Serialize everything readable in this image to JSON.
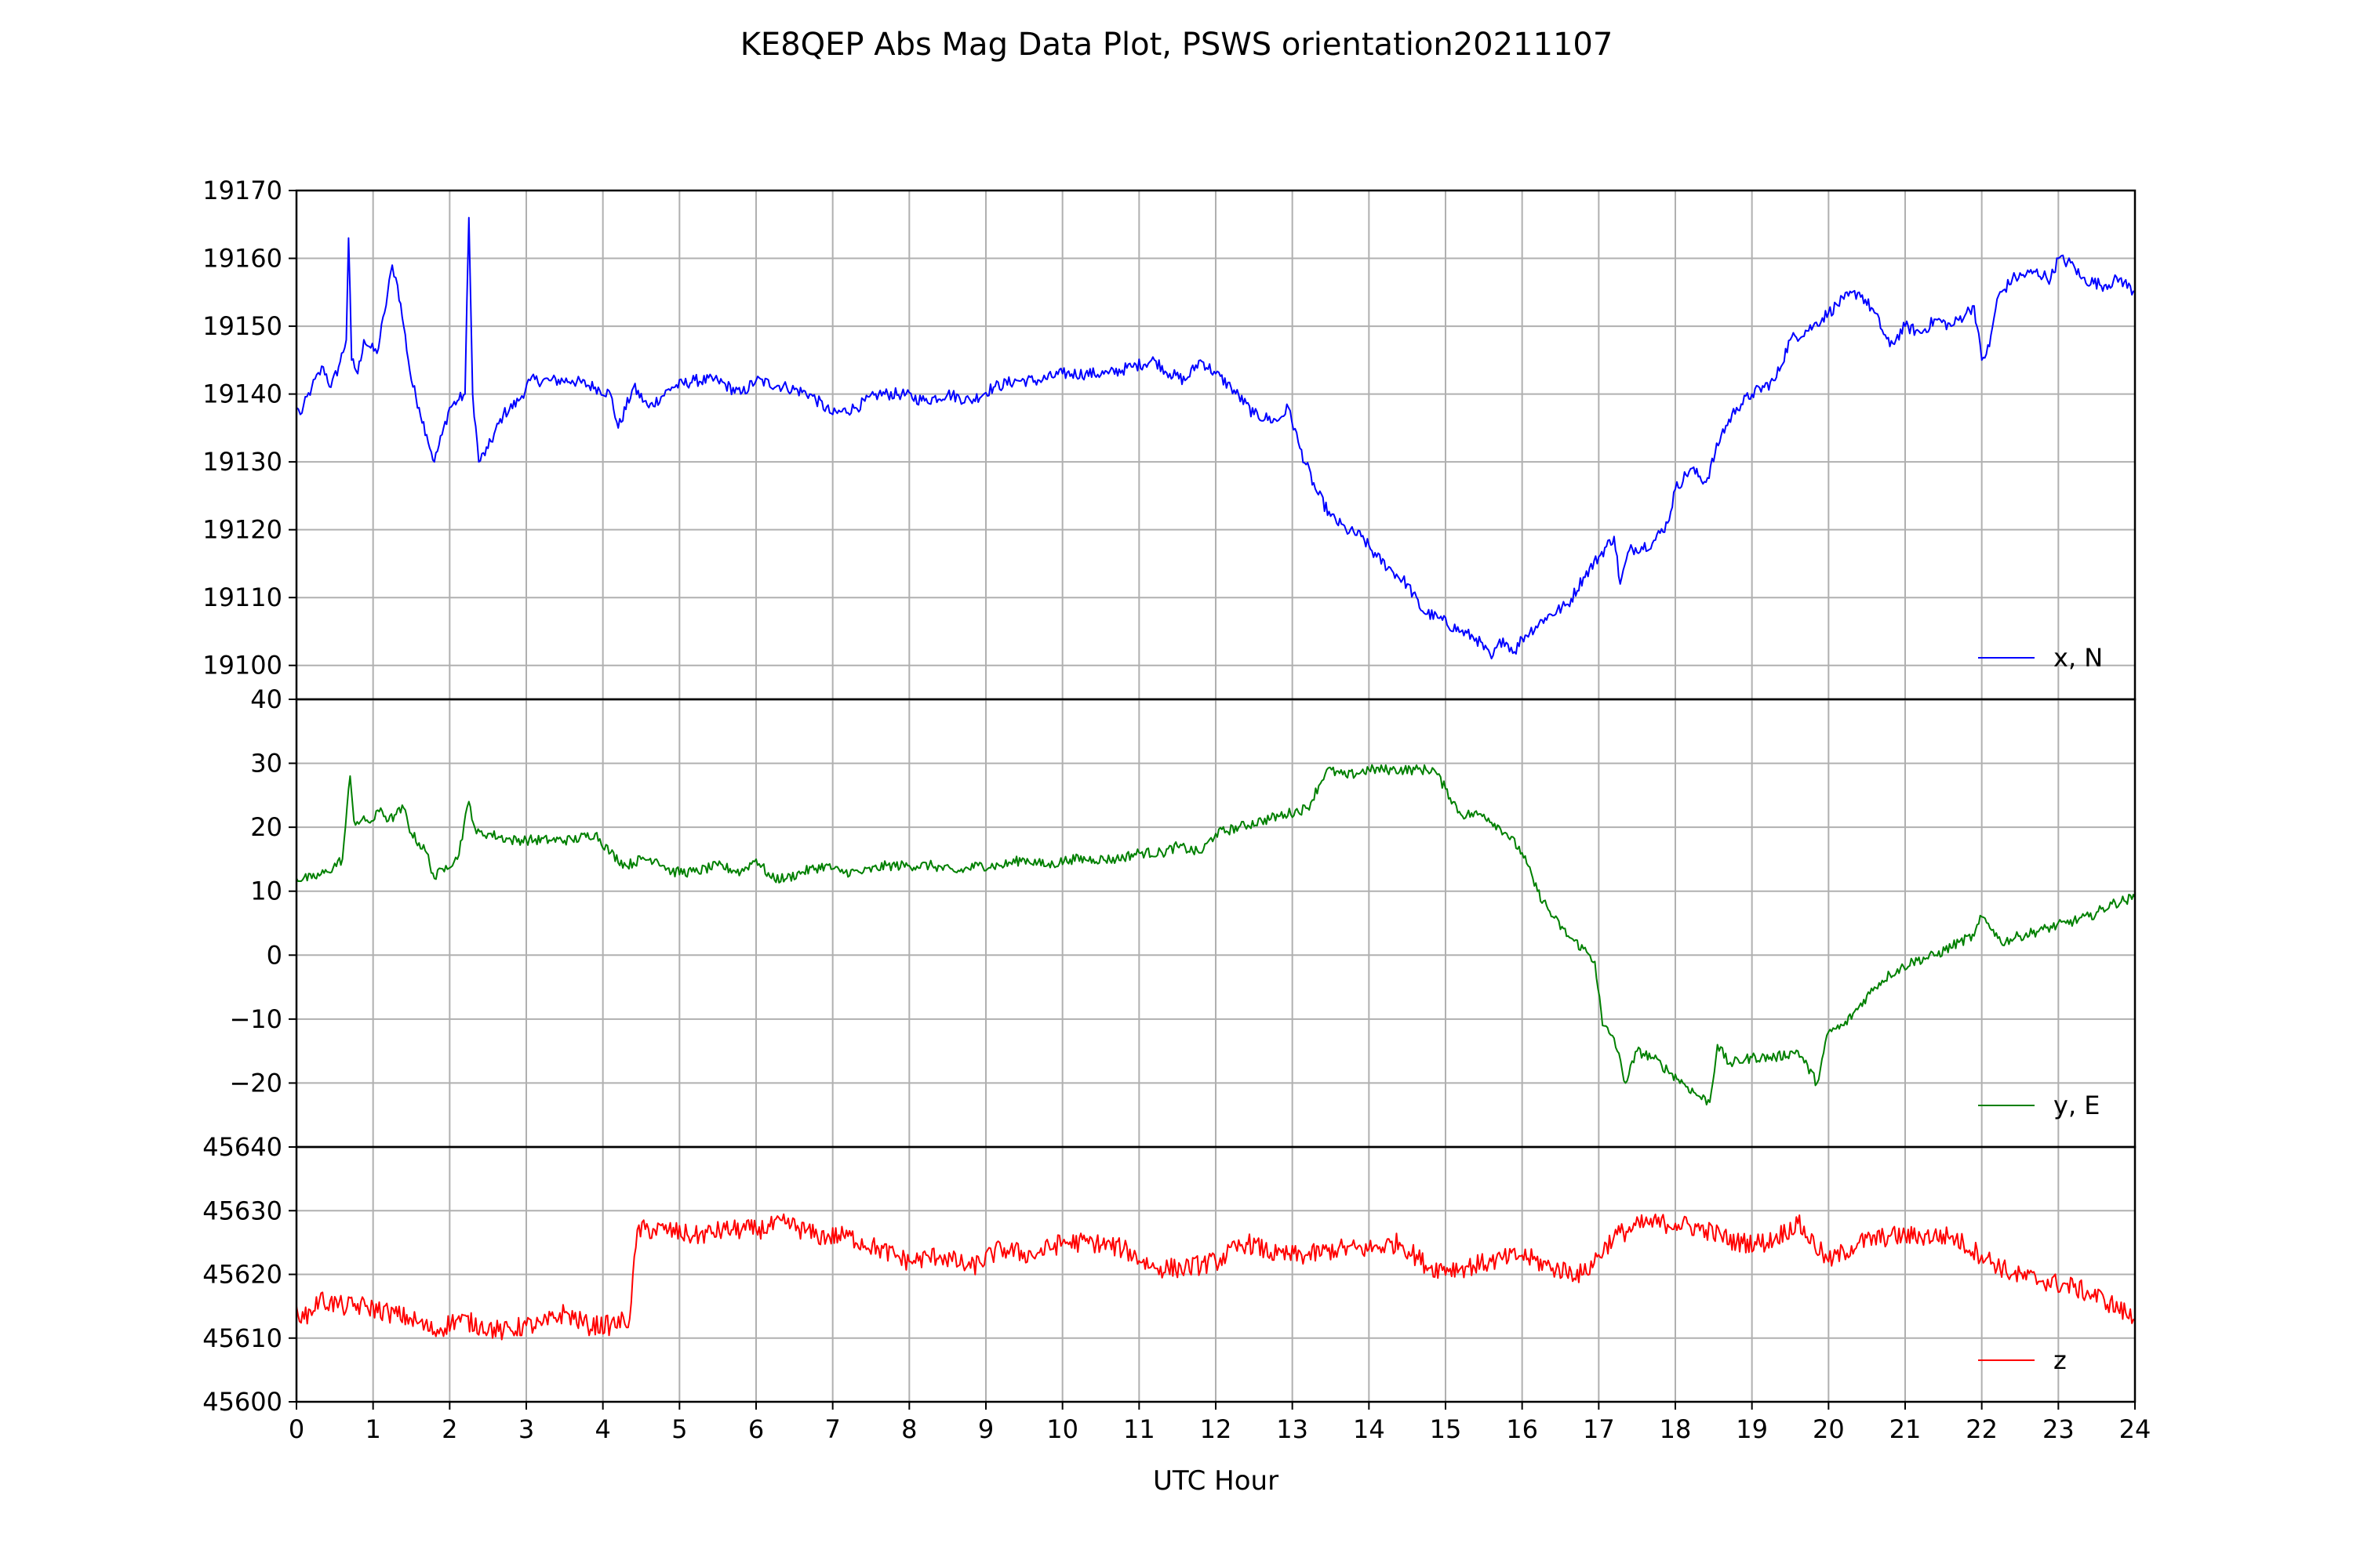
{
  "chart_data": {
    "type": "line",
    "title": "KE8QEP Abs Mag Data Plot, PSWS orientation20211107",
    "xlabel": "UTC Hour",
    "xlim": [
      0,
      24
    ],
    "x_ticks": [
      "0",
      "1",
      "2",
      "3",
      "4",
      "5",
      "6",
      "7",
      "8",
      "9",
      "10",
      "11",
      "12",
      "13",
      "14",
      "15",
      "16",
      "17",
      "18",
      "19",
      "20",
      "21",
      "22",
      "23",
      "24"
    ],
    "grid": true,
    "legend_placement": "lower-right",
    "panels": [
      {
        "series_name": "x, N",
        "color": "#0000ff",
        "ylim": [
          19095,
          19170
        ],
        "y_ticks": [
          "19170",
          "19160",
          "19150",
          "19140",
          "19130",
          "19120",
          "19110",
          "19100"
        ],
        "noise": 0.9,
        "points": [
          [
            0,
            19138
          ],
          [
            0.05,
            19137
          ],
          [
            0.2,
            19141
          ],
          [
            0.35,
            19144
          ],
          [
            0.45,
            19141
          ],
          [
            0.55,
            19144
          ],
          [
            0.65,
            19148
          ],
          [
            0.68,
            19163
          ],
          [
            0.72,
            19145
          ],
          [
            0.8,
            19143
          ],
          [
            0.88,
            19148
          ],
          [
            0.95,
            19147
          ],
          [
            1.05,
            19146
          ],
          [
            1.15,
            19152
          ],
          [
            1.25,
            19159
          ],
          [
            1.32,
            19156
          ],
          [
            1.4,
            19150
          ],
          [
            1.5,
            19142
          ],
          [
            1.6,
            19138
          ],
          [
            1.7,
            19134
          ],
          [
            1.8,
            19130
          ],
          [
            1.9,
            19134
          ],
          [
            2.0,
            19138
          ],
          [
            2.1,
            19139
          ],
          [
            2.2,
            19140
          ],
          [
            2.25,
            19166
          ],
          [
            2.3,
            19140
          ],
          [
            2.38,
            19130
          ],
          [
            2.5,
            19132
          ],
          [
            2.7,
            19137
          ],
          [
            2.9,
            19139
          ],
          [
            3.05,
            19142
          ],
          [
            3.3,
            19142
          ],
          [
            3.6,
            19142
          ],
          [
            3.9,
            19141
          ],
          [
            4.1,
            19140
          ],
          [
            4.2,
            19135
          ],
          [
            4.4,
            19141
          ],
          [
            4.6,
            19138
          ],
          [
            4.9,
            19141
          ],
          [
            5.2,
            19142
          ],
          [
            5.5,
            19142
          ],
          [
            5.8,
            19140
          ],
          [
            6.0,
            19142
          ],
          [
            6.4,
            19141
          ],
          [
            6.7,
            19140
          ],
          [
            7.0,
            19137
          ],
          [
            7.3,
            19138
          ],
          [
            7.6,
            19140
          ],
          [
            7.9,
            19140
          ],
          [
            8.2,
            19139
          ],
          [
            8.5,
            19140
          ],
          [
            8.8,
            19139
          ],
          [
            9.1,
            19141
          ],
          [
            9.4,
            19142
          ],
          [
            9.7,
            19142
          ],
          [
            10.0,
            19143
          ],
          [
            10.3,
            19143
          ],
          [
            10.6,
            19143
          ],
          [
            10.9,
            19144
          ],
          [
            11.2,
            19145
          ],
          [
            11.4,
            19143
          ],
          [
            11.6,
            19142
          ],
          [
            11.8,
            19145
          ],
          [
            12.0,
            19143
          ],
          [
            12.2,
            19141
          ],
          [
            12.5,
            19137
          ],
          [
            12.8,
            19136
          ],
          [
            12.95,
            19138
          ],
          [
            13.1,
            19132
          ],
          [
            13.3,
            19126
          ],
          [
            13.5,
            19122
          ],
          [
            13.7,
            19120
          ],
          [
            13.9,
            19119
          ],
          [
            14.1,
            19116
          ],
          [
            14.3,
            19114
          ],
          [
            14.5,
            19112
          ],
          [
            14.7,
            19108
          ],
          [
            14.9,
            19107
          ],
          [
            15.2,
            19105
          ],
          [
            15.4,
            19104
          ],
          [
            15.6,
            19101
          ],
          [
            15.75,
            19104
          ],
          [
            15.9,
            19102
          ],
          [
            16.0,
            19104
          ],
          [
            16.3,
            19107
          ],
          [
            16.6,
            19109
          ],
          [
            16.8,
            19113
          ],
          [
            17.0,
            19116
          ],
          [
            17.2,
            19119
          ],
          [
            17.28,
            19112
          ],
          [
            17.4,
            19117
          ],
          [
            17.7,
            19118
          ],
          [
            17.9,
            19121
          ],
          [
            18.0,
            19126
          ],
          [
            18.2,
            19129
          ],
          [
            18.4,
            19127
          ],
          [
            18.6,
            19134
          ],
          [
            18.8,
            19138
          ],
          [
            19.0,
            19140
          ],
          [
            19.3,
            19142
          ],
          [
            19.5,
            19148
          ],
          [
            19.8,
            19150
          ],
          [
            20.0,
            19152
          ],
          [
            20.2,
            19154
          ],
          [
            20.4,
            19155
          ],
          [
            20.6,
            19152
          ],
          [
            20.8,
            19147
          ],
          [
            21.0,
            19150
          ],
          [
            21.2,
            19149
          ],
          [
            21.4,
            19151
          ],
          [
            21.6,
            19150
          ],
          [
            21.8,
            19152
          ],
          [
            21.9,
            19153
          ],
          [
            22.0,
            19145
          ],
          [
            22.1,
            19147
          ],
          [
            22.2,
            19154
          ],
          [
            22.4,
            19157
          ],
          [
            22.7,
            19158
          ],
          [
            22.9,
            19157
          ],
          [
            23.0,
            19160
          ],
          [
            23.2,
            19159
          ],
          [
            23.3,
            19157
          ],
          [
            23.6,
            19156
          ],
          [
            23.8,
            19157
          ],
          [
            24.0,
            19155
          ]
        ]
      },
      {
        "series_name": "y, E",
        "color": "#008000",
        "ylim": [
          -30,
          40
        ],
        "y_ticks": [
          "40",
          "30",
          "20",
          "10",
          "0",
          "−10",
          "−20"
        ],
        "noise": 0.8,
        "points": [
          [
            0,
            12
          ],
          [
            0.2,
            12
          ],
          [
            0.4,
            13
          ],
          [
            0.6,
            15
          ],
          [
            0.7,
            28
          ],
          [
            0.75,
            21
          ],
          [
            0.9,
            21
          ],
          [
            1.0,
            21
          ],
          [
            1.1,
            23
          ],
          [
            1.2,
            21
          ],
          [
            1.3,
            22
          ],
          [
            1.4,
            23
          ],
          [
            1.5,
            19
          ],
          [
            1.7,
            16
          ],
          [
            1.8,
            12
          ],
          [
            1.95,
            14
          ],
          [
            2.1,
            15
          ],
          [
            2.25,
            24
          ],
          [
            2.35,
            19
          ],
          [
            2.5,
            19
          ],
          [
            2.8,
            18
          ],
          [
            3.0,
            18
          ],
          [
            3.3,
            18
          ],
          [
            3.6,
            18
          ],
          [
            3.9,
            19
          ],
          [
            4.1,
            16
          ],
          [
            4.3,
            14
          ],
          [
            4.5,
            15
          ],
          [
            4.7,
            15
          ],
          [
            4.9,
            13
          ],
          [
            5.2,
            13
          ],
          [
            5.5,
            14
          ],
          [
            5.8,
            13
          ],
          [
            6.0,
            15
          ],
          [
            6.2,
            12
          ],
          [
            6.4,
            12
          ],
          [
            6.6,
            13
          ],
          [
            6.9,
            14
          ],
          [
            7.1,
            13
          ],
          [
            7.4,
            13
          ],
          [
            7.7,
            14
          ],
          [
            8.0,
            14
          ],
          [
            8.3,
            14
          ],
          [
            8.6,
            13
          ],
          [
            8.9,
            14
          ],
          [
            9.2,
            14
          ],
          [
            9.5,
            15
          ],
          [
            9.8,
            14
          ],
          [
            10.1,
            15
          ],
          [
            10.4,
            15
          ],
          [
            10.7,
            15
          ],
          [
            11.0,
            16
          ],
          [
            11.3,
            16
          ],
          [
            11.5,
            17
          ],
          [
            11.8,
            16
          ],
          [
            12.0,
            19
          ],
          [
            12.3,
            20
          ],
          [
            12.6,
            21
          ],
          [
            12.9,
            22
          ],
          [
            13.2,
            23
          ],
          [
            13.45,
            29
          ],
          [
            13.7,
            28
          ],
          [
            14.0,
            29
          ],
          [
            14.3,
            29
          ],
          [
            14.6,
            29
          ],
          [
            14.85,
            29
          ],
          [
            15.0,
            26
          ],
          [
            15.2,
            22
          ],
          [
            15.5,
            22
          ],
          [
            15.8,
            19
          ],
          [
            16.0,
            16
          ],
          [
            16.2,
            10
          ],
          [
            16.4,
            6
          ],
          [
            16.6,
            3
          ],
          [
            16.8,
            1
          ],
          [
            16.95,
            -1
          ],
          [
            17.05,
            -11
          ],
          [
            17.2,
            -13
          ],
          [
            17.35,
            -20
          ],
          [
            17.5,
            -15
          ],
          [
            17.7,
            -16
          ],
          [
            17.9,
            -18
          ],
          [
            18.1,
            -20
          ],
          [
            18.3,
            -22
          ],
          [
            18.45,
            -23
          ],
          [
            18.55,
            -14
          ],
          [
            18.7,
            -17
          ],
          [
            19.0,
            -16
          ],
          [
            19.3,
            -16
          ],
          [
            19.6,
            -15
          ],
          [
            19.85,
            -20
          ],
          [
            20.0,
            -12
          ],
          [
            20.2,
            -11
          ],
          [
            20.4,
            -8
          ],
          [
            20.6,
            -5
          ],
          [
            20.8,
            -3
          ],
          [
            21.1,
            -1
          ],
          [
            21.4,
            0
          ],
          [
            21.7,
            2
          ],
          [
            21.9,
            3
          ],
          [
            22.0,
            6
          ],
          [
            22.15,
            4
          ],
          [
            22.25,
            2
          ],
          [
            22.5,
            3
          ],
          [
            22.8,
            4
          ],
          [
            23.1,
            5
          ],
          [
            23.4,
            6
          ],
          [
            23.7,
            8
          ],
          [
            24.0,
            9
          ]
        ]
      },
      {
        "series_name": "z",
        "color": "#ff0000",
        "ylim": [
          45600,
          45640
        ],
        "y_ticks": [
          "45640",
          "45630",
          "45620",
          "45610",
          "45600"
        ],
        "noise": 1.6,
        "points": [
          [
            0,
            45615
          ],
          [
            0.1,
            45613
          ],
          [
            0.3,
            45616
          ],
          [
            0.6,
            45615
          ],
          [
            0.9,
            45615
          ],
          [
            1.2,
            45614
          ],
          [
            1.5,
            45613
          ],
          [
            1.8,
            45611
          ],
          [
            2.1,
            45613
          ],
          [
            2.4,
            45612
          ],
          [
            2.7,
            45611
          ],
          [
            3.0,
            45612
          ],
          [
            3.2,
            45612
          ],
          [
            3.5,
            45614
          ],
          [
            3.8,
            45612
          ],
          [
            4.1,
            45612
          ],
          [
            4.35,
            45613
          ],
          [
            4.45,
            45627
          ],
          [
            4.8,
            45627
          ],
          [
            5.2,
            45626
          ],
          [
            5.6,
            45627
          ],
          [
            6.0,
            45627
          ],
          [
            6.4,
            45628
          ],
          [
            6.8,
            45626
          ],
          [
            7.2,
            45626
          ],
          [
            7.6,
            45624
          ],
          [
            8.0,
            45622
          ],
          [
            8.4,
            45623
          ],
          [
            8.8,
            45621
          ],
          [
            9.2,
            45624
          ],
          [
            9.6,
            45623
          ],
          [
            10.0,
            45625
          ],
          [
            10.4,
            45625
          ],
          [
            10.8,
            45624
          ],
          [
            11.2,
            45621
          ],
          [
            11.6,
            45621
          ],
          [
            12.0,
            45622
          ],
          [
            12.4,
            45625
          ],
          [
            12.8,
            45623
          ],
          [
            13.2,
            45623
          ],
          [
            13.6,
            45624
          ],
          [
            14.0,
            45624
          ],
          [
            14.4,
            45625
          ],
          [
            14.8,
            45621
          ],
          [
            15.2,
            45621
          ],
          [
            15.6,
            45622
          ],
          [
            16.0,
            45623
          ],
          [
            16.4,
            45621
          ],
          [
            16.8,
            45620
          ],
          [
            17.2,
            45626
          ],
          [
            17.6,
            45628
          ],
          [
            18.0,
            45628
          ],
          [
            18.4,
            45627
          ],
          [
            18.8,
            45625
          ],
          [
            19.2,
            45625
          ],
          [
            19.6,
            45628
          ],
          [
            20.0,
            45622
          ],
          [
            20.4,
            45625
          ],
          [
            20.8,
            45626
          ],
          [
            21.2,
            45626
          ],
          [
            21.6,
            45626
          ],
          [
            22.0,
            45623
          ],
          [
            22.4,
            45620
          ],
          [
            22.8,
            45619
          ],
          [
            23.2,
            45618
          ],
          [
            23.6,
            45616
          ],
          [
            24.0,
            45613
          ]
        ]
      }
    ]
  }
}
